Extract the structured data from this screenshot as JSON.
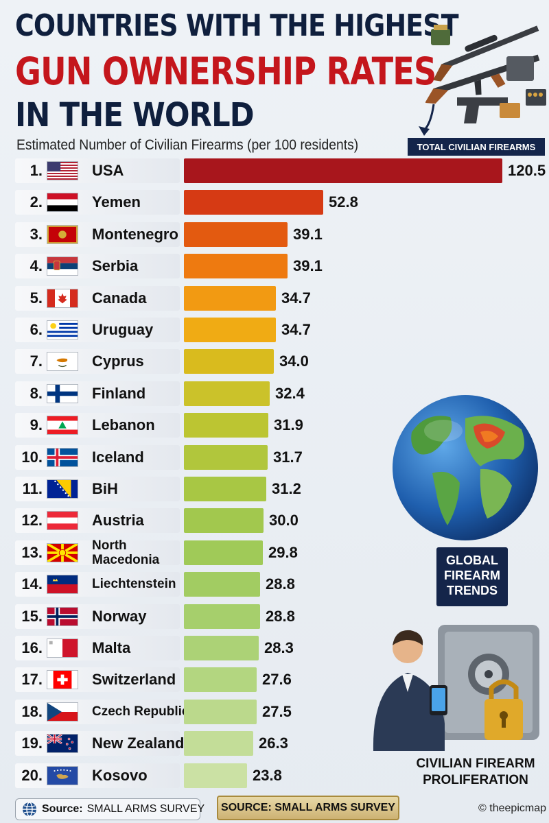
{
  "title": {
    "line1": "COUNTRIES WITH THE HIGHEST",
    "line2": "GUN OWNERSHIP RATES",
    "line3": "IN THE WORLD"
  },
  "subtitle": "Estimated Number of Civilian Firearms (per 100 residents)",
  "total_badge": "TOTAL CIVILIAN FIREARMS",
  "globe_label": "GLOBAL\nFIREARM\nTRENDS",
  "proliferation_label": "CIVILIAN FIREARM\nPROLIFERATION",
  "source_left": {
    "prefix": "Source:",
    "text": "SMALL ARMS SURVEY"
  },
  "source_right": "SOURCE: SMALL ARMS SURVEY",
  "credit": "© theepicmap",
  "chart_data": {
    "type": "bar",
    "orientation": "horizontal",
    "title": "COUNTRIES WITH THE HIGHEST GUN OWNERSHIP RATES IN THE WORLD",
    "subtitle": "Estimated Number of Civilian Firearms (per 100 residents)",
    "categories": [
      "USA",
      "Yemen",
      "Montenegro",
      "Serbia",
      "Canada",
      "Uruguay",
      "Cyprus",
      "Finland",
      "Lebanon",
      "Iceland",
      "BiH",
      "Austria",
      "North Macedonia",
      "Liechtenstein",
      "Norway",
      "Malta",
      "Switzerland",
      "Czech Republic",
      "New Zealand",
      "Kosovo"
    ],
    "ranks": [
      "1.",
      "2.",
      "3.",
      "4.",
      "5.",
      "6.",
      "7.",
      "8.",
      "9.",
      "10.",
      "11.",
      "12.",
      "13.",
      "14.",
      "15.",
      "16.",
      "17.",
      "18.",
      "19.",
      "20."
    ],
    "values": [
      120.5,
      52.8,
      39.1,
      39.1,
      34.7,
      34.7,
      34.0,
      32.4,
      31.9,
      31.7,
      31.2,
      30.0,
      29.8,
      28.8,
      28.8,
      28.3,
      27.6,
      27.5,
      26.3,
      23.8
    ],
    "value_labels": [
      "120.5",
      "52.8",
      "39.1",
      "39.1",
      "34.7",
      "34.7",
      "34.0",
      "32.4",
      "31.9",
      "31.7",
      "31.2",
      "30.0",
      "29.8",
      "28.8",
      "28.8",
      "28.3",
      "27.6",
      "27.5",
      "26.3",
      "23.8"
    ],
    "flag_icons": [
      "usa-flag-icon",
      "yemen-flag-icon",
      "montenegro-flag-icon",
      "serbia-flag-icon",
      "canada-flag-icon",
      "uruguay-flag-icon",
      "cyprus-flag-icon",
      "finland-flag-icon",
      "lebanon-flag-icon",
      "iceland-flag-icon",
      "bih-flag-icon",
      "austria-flag-icon",
      "north-macedonia-flag-icon",
      "liechtenstein-flag-icon",
      "norway-flag-icon",
      "malta-flag-icon",
      "switzerland-flag-icon",
      "czech-republic-flag-icon",
      "new-zealand-flag-icon",
      "kosovo-flag-icon"
    ],
    "bar_colors": [
      "#a8161c",
      "#d63a14",
      "#e35a10",
      "#ee7a10",
      "#f29a12",
      "#f0ab14",
      "#d9bb1e",
      "#cbc22a",
      "#bcc532",
      "#b1c63c",
      "#a8c744",
      "#a2c84e",
      "#a0ca58",
      "#a2cc62",
      "#a6cf6c",
      "#acd276",
      "#b3d680",
      "#bbd98c",
      "#c3dd98",
      "#cbe1a4"
    ],
    "xlim": [
      0,
      120.5
    ],
    "grid": false,
    "legend": "none"
  }
}
